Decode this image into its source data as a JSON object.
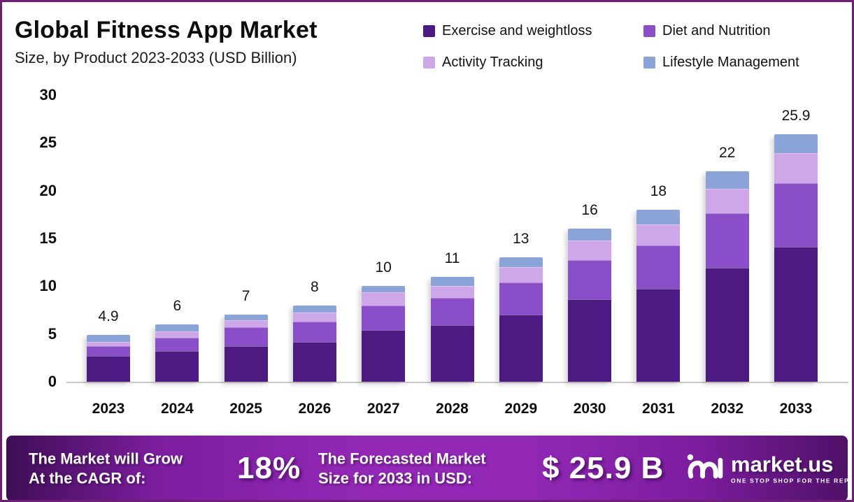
{
  "header": {
    "title": "Global Fitness App Market",
    "subtitle": "Size, by Product 2023-2033 (USD Billion)"
  },
  "chart_data": {
    "type": "bar",
    "stacked": true,
    "title": "Global Fitness App Market",
    "subtitle": "Size, by Product 2023-2033 (USD Billion)",
    "unit": "USD Billion",
    "categories": [
      "2023",
      "2024",
      "2025",
      "2026",
      "2027",
      "2028",
      "2029",
      "2030",
      "2031",
      "2032",
      "2033"
    ],
    "series": [
      {
        "name": "Exercise and weightloss",
        "color": "#4d1a82",
        "values": [
          2.7,
          3.2,
          3.7,
          4.2,
          5.4,
          5.9,
          7.0,
          8.6,
          9.7,
          11.9,
          14.1
        ]
      },
      {
        "name": "Diet and Nutrition",
        "color": "#8a4fc8",
        "values": [
          1.0,
          1.4,
          2.0,
          2.1,
          2.6,
          2.9,
          3.4,
          4.1,
          4.6,
          5.7,
          6.7
        ]
      },
      {
        "name": "Activity Tracking",
        "color": "#cda7e8",
        "values": [
          0.5,
          0.7,
          0.75,
          0.95,
          1.4,
          1.2,
          1.6,
          2.1,
          2.2,
          2.6,
          3.1
        ]
      },
      {
        "name": "Lifestyle Management",
        "color": "#8aa4d8",
        "values": [
          0.7,
          0.7,
          0.55,
          0.75,
          0.6,
          1.0,
          1.0,
          1.2,
          1.5,
          1.8,
          2.0
        ]
      }
    ],
    "total_labels": [
      "4.9",
      "6",
      "7",
      "8",
      "10",
      "11",
      "13",
      "16",
      "18",
      "22",
      "25.9"
    ],
    "ylim": [
      0,
      30
    ],
    "yticks": [
      0,
      5,
      10,
      15,
      20,
      25,
      30
    ],
    "grid": false,
    "legend_position": "top-right"
  },
  "banner": {
    "cagr_line1": "The Market will Grow",
    "cagr_line2": "At the CAGR of:",
    "cagr_value": "18%",
    "forecast_line1": "The Forecasted Market",
    "forecast_line2": "Size for 2033 in USD:",
    "forecast_value": "$ 25.9 B",
    "brand_name": "market.us",
    "brand_tagline": "ONE STOP SHOP FOR THE REPORTS"
  },
  "colors": {
    "frame_border": "#6e2077",
    "baseline": "#c9c9c9",
    "banner_gradient_edge": "#3f0e56",
    "banner_gradient_center": "#9228b5",
    "text": "#111111",
    "banner_text": "#ffffff"
  }
}
